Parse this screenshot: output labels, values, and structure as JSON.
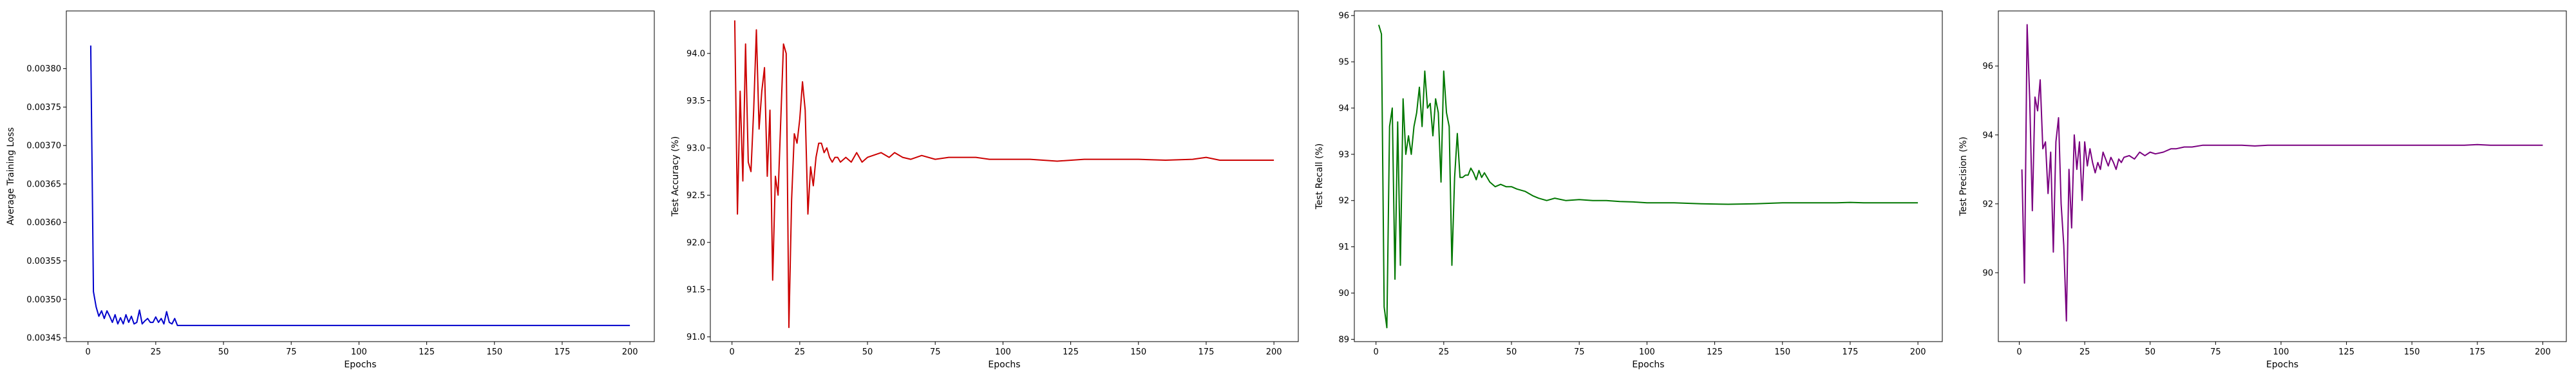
{
  "chart_data": [
    {
      "type": "line",
      "xlabel": "Epochs",
      "ylabel": "Average Training Loss",
      "color": "#0000cc",
      "xlim": [
        -8,
        209
      ],
      "ylim": [
        0.003445,
        0.003875
      ],
      "xticks": [
        0,
        25,
        50,
        75,
        100,
        125,
        150,
        175,
        200
      ],
      "yticks": [
        0.00345,
        0.0035,
        0.00355,
        0.0036,
        0.00365,
        0.0037,
        0.00375,
        0.0038
      ],
      "ytick_labels": [
        "0.00345",
        "0.00350",
        "0.00355",
        "0.00360",
        "0.00365",
        "0.00370",
        "0.00375",
        "0.00380"
      ],
      "grid": false,
      "series": [
        {
          "x": [
            1,
            2,
            3,
            4,
            5,
            6,
            7,
            8,
            9,
            10,
            11,
            12,
            13,
            14,
            15,
            16,
            17,
            18,
            19,
            20,
            21,
            22,
            23,
            24,
            25,
            26,
            27,
            28,
            29,
            30,
            31,
            32,
            33,
            34,
            35,
            50,
            100,
            150,
            200
          ],
          "values": [
            0.00383,
            0.00351,
            0.00349,
            0.003478,
            0.003485,
            0.003475,
            0.003485,
            0.003478,
            0.00347,
            0.00348,
            0.003468,
            0.003476,
            0.003468,
            0.00348,
            0.00347,
            0.003478,
            0.003468,
            0.00347,
            0.003486,
            0.003468,
            0.003472,
            0.003475,
            0.00347,
            0.00347,
            0.003477,
            0.00347,
            0.003475,
            0.003468,
            0.003484,
            0.00347,
            0.003468,
            0.003475,
            0.003466,
            0.003466,
            0.003466,
            0.003466,
            0.003466,
            0.003466,
            0.003466
          ]
        }
      ]
    },
    {
      "type": "line",
      "xlabel": "Epochs",
      "ylabel": "Test Accuracy (%)",
      "color": "#cc0000",
      "xlim": [
        -8,
        209
      ],
      "ylim": [
        90.95,
        94.45
      ],
      "xticks": [
        0,
        25,
        50,
        75,
        100,
        125,
        150,
        175,
        200
      ],
      "yticks": [
        91.0,
        91.5,
        92.0,
        92.5,
        93.0,
        93.5,
        94.0
      ],
      "ytick_labels": [
        "91.0",
        "91.5",
        "92.0",
        "92.5",
        "93.0",
        "93.5",
        "94.0"
      ],
      "grid": false,
      "series": [
        {
          "x": [
            1,
            2,
            3,
            4,
            5,
            6,
            7,
            8,
            9,
            10,
            11,
            12,
            13,
            14,
            15,
            16,
            17,
            18,
            19,
            20,
            21,
            22,
            23,
            24,
            25,
            26,
            27,
            28,
            29,
            30,
            31,
            32,
            33,
            34,
            35,
            36,
            37,
            38,
            39,
            40,
            42,
            44,
            46,
            48,
            50,
            52,
            55,
            58,
            60,
            63,
            66,
            70,
            75,
            80,
            85,
            90,
            95,
            100,
            110,
            120,
            130,
            140,
            150,
            160,
            170,
            175,
            180,
            190,
            200
          ],
          "values": [
            94.35,
            92.3,
            93.6,
            92.65,
            94.1,
            92.85,
            92.75,
            93.4,
            94.25,
            93.2,
            93.6,
            93.85,
            92.7,
            93.4,
            91.6,
            92.7,
            92.5,
            93.3,
            94.1,
            94.0,
            91.1,
            92.45,
            93.15,
            93.05,
            93.3,
            93.7,
            93.4,
            92.3,
            92.8,
            92.6,
            92.9,
            93.05,
            93.05,
            92.95,
            93.0,
            92.9,
            92.85,
            92.9,
            92.9,
            92.85,
            92.9,
            92.85,
            92.95,
            92.85,
            92.9,
            92.92,
            92.95,
            92.9,
            92.95,
            92.9,
            92.88,
            92.92,
            92.88,
            92.9,
            92.9,
            92.9,
            92.88,
            92.88,
            92.88,
            92.86,
            92.88,
            92.88,
            92.88,
            92.87,
            92.88,
            92.9,
            92.87,
            92.87,
            92.87
          ]
        }
      ]
    },
    {
      "type": "line",
      "xlabel": "Epochs",
      "ylabel": "Test Recall (%)",
      "color": "#007700",
      "xlim": [
        -8,
        209
      ],
      "ylim": [
        88.95,
        96.1
      ],
      "xticks": [
        0,
        25,
        50,
        75,
        100,
        125,
        150,
        175,
        200
      ],
      "yticks": [
        89,
        90,
        91,
        92,
        93,
        94,
        95,
        96
      ],
      "ytick_labels": [
        "89",
        "90",
        "91",
        "92",
        "93",
        "94",
        "95",
        "96"
      ],
      "grid": false,
      "series": [
        {
          "x": [
            1,
            2,
            3,
            4,
            5,
            6,
            7,
            8,
            9,
            10,
            11,
            12,
            13,
            14,
            15,
            16,
            17,
            18,
            19,
            20,
            21,
            22,
            23,
            24,
            25,
            26,
            27,
            28,
            29,
            30,
            31,
            32,
            33,
            34,
            35,
            36,
            37,
            38,
            39,
            40,
            42,
            44,
            46,
            48,
            50,
            52,
            55,
            58,
            60,
            63,
            66,
            70,
            75,
            80,
            85,
            90,
            95,
            100,
            110,
            120,
            130,
            140,
            150,
            160,
            170,
            175,
            180,
            190,
            200
          ],
          "values": [
            95.8,
            95.6,
            89.7,
            89.25,
            93.6,
            94.0,
            90.3,
            93.7,
            90.6,
            94.2,
            93.0,
            93.4,
            93.0,
            93.6,
            93.9,
            94.45,
            93.6,
            94.8,
            94.0,
            94.1,
            93.4,
            94.2,
            93.9,
            92.4,
            94.8,
            93.9,
            93.6,
            90.6,
            92.5,
            93.45,
            92.5,
            92.5,
            92.55,
            92.55,
            92.7,
            92.6,
            92.45,
            92.65,
            92.5,
            92.6,
            92.4,
            92.3,
            92.35,
            92.3,
            92.3,
            92.25,
            92.2,
            92.1,
            92.05,
            92.0,
            92.05,
            92.0,
            92.02,
            92.0,
            92.0,
            91.98,
            91.97,
            91.95,
            91.95,
            91.93,
            91.92,
            91.93,
            91.95,
            91.95,
            91.95,
            91.96,
            91.95,
            91.95,
            91.95
          ]
        }
      ]
    },
    {
      "type": "line",
      "xlabel": "Epochs",
      "ylabel": "Test Precision (%)",
      "color": "#7a0080",
      "xlim": [
        -8,
        209
      ],
      "ylim": [
        88.0,
        97.6
      ],
      "xticks": [
        0,
        25,
        50,
        75,
        100,
        125,
        150,
        175,
        200
      ],
      "yticks": [
        90,
        92,
        94,
        96
      ],
      "ytick_labels": [
        "90",
        "92",
        "94",
        "96"
      ],
      "grid": false,
      "series": [
        {
          "x": [
            1,
            2,
            3,
            4,
            5,
            6,
            7,
            8,
            9,
            10,
            11,
            12,
            13,
            14,
            15,
            16,
            17,
            18,
            19,
            20,
            21,
            22,
            23,
            24,
            25,
            26,
            27,
            28,
            29,
            30,
            31,
            32,
            33,
            34,
            35,
            36,
            37,
            38,
            39,
            40,
            42,
            44,
            46,
            48,
            50,
            52,
            55,
            58,
            60,
            63,
            66,
            70,
            75,
            80,
            85,
            90,
            95,
            100,
            110,
            120,
            130,
            140,
            150,
            160,
            170,
            175,
            180,
            190,
            200
          ],
          "values": [
            93.0,
            89.7,
            97.2,
            95.0,
            91.8,
            95.1,
            94.7,
            95.6,
            93.6,
            93.8,
            92.3,
            93.5,
            90.6,
            93.8,
            94.5,
            92.0,
            90.8,
            88.6,
            93.0,
            91.3,
            94.0,
            93.0,
            93.8,
            92.1,
            93.8,
            93.1,
            93.6,
            93.2,
            92.9,
            93.2,
            93.0,
            93.5,
            93.3,
            93.1,
            93.35,
            93.2,
            93.0,
            93.3,
            93.2,
            93.35,
            93.4,
            93.3,
            93.5,
            93.4,
            93.5,
            93.45,
            93.5,
            93.6,
            93.6,
            93.65,
            93.65,
            93.7,
            93.7,
            93.7,
            93.7,
            93.68,
            93.7,
            93.7,
            93.7,
            93.7,
            93.7,
            93.7,
            93.7,
            93.7,
            93.7,
            93.72,
            93.7,
            93.7,
            93.7
          ]
        }
      ]
    }
  ]
}
